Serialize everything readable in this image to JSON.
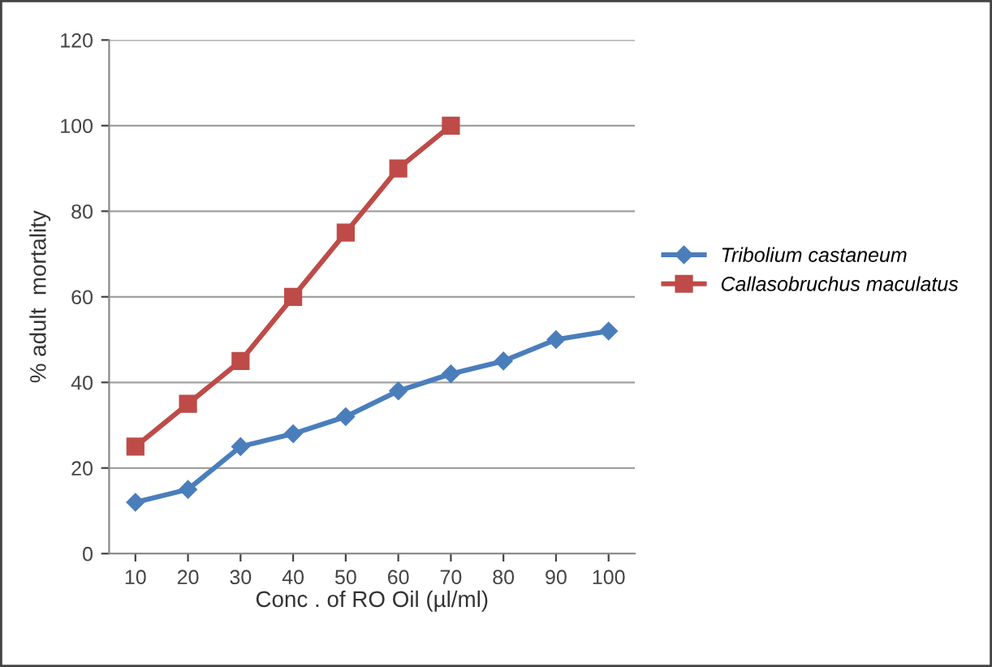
{
  "chart_data": {
    "type": "line",
    "xlabel": "Conc . of RO Oil (µl/ml)",
    "ylabel": "% adult  mortality",
    "categories": [
      "10",
      "20",
      "30",
      "40",
      "50",
      "60",
      "70",
      "80",
      "90",
      "100"
    ],
    "series": [
      {
        "name": "Tribolium castaneum",
        "color": "#4a7ebb",
        "marker": "diamond",
        "values": [
          12,
          15,
          25,
          28,
          32,
          38,
          42,
          45,
          50,
          52
        ]
      },
      {
        "name": "Callasobruchus maculatus",
        "color": "#be4b48",
        "marker": "square",
        "values": [
          25,
          35,
          45,
          60,
          75,
          90,
          100,
          null,
          null,
          null
        ]
      }
    ],
    "ylim": [
      0,
      120
    ],
    "yticks": [
      0,
      20,
      40,
      60,
      80,
      100,
      120
    ],
    "grid": "y",
    "legend": "right",
    "line_style": "solid"
  }
}
